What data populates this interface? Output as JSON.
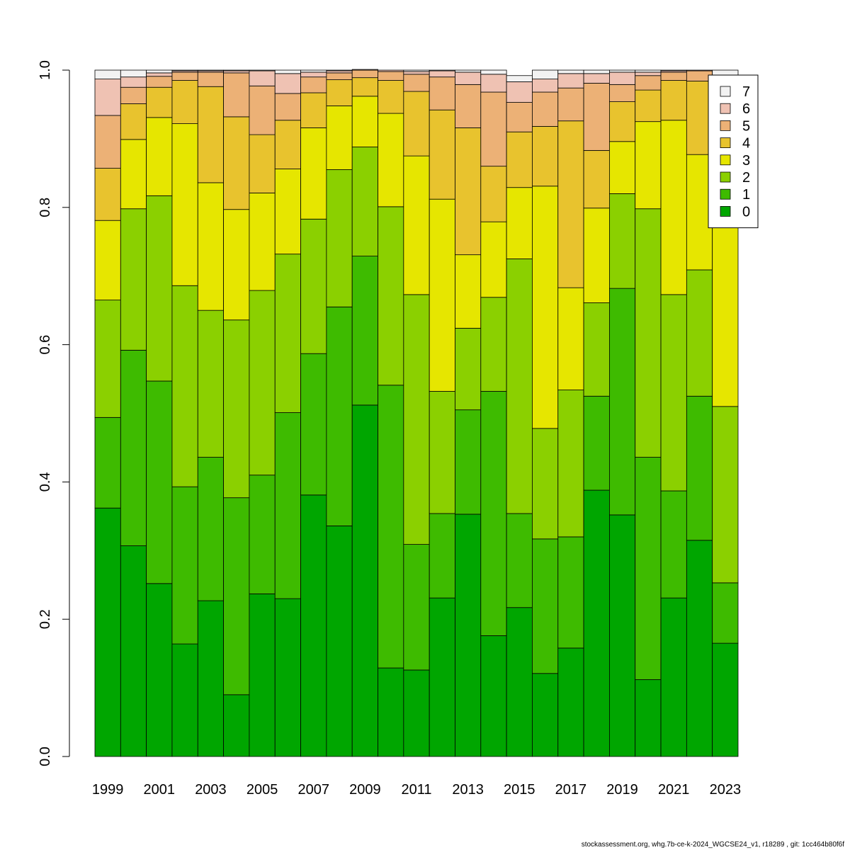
{
  "chart_data": {
    "type": "bar",
    "stacked": true,
    "categories": [
      "1999",
      "2000",
      "2001",
      "2002",
      "2003",
      "2004",
      "2005",
      "2006",
      "2007",
      "2008",
      "2009",
      "2010",
      "2011",
      "2012",
      "2013",
      "2014",
      "2015",
      "2016",
      "2017",
      "2018",
      "2019",
      "2020",
      "2021",
      "2022",
      "2023"
    ],
    "x_tick_labels": [
      "1999",
      "2001",
      "2003",
      "2005",
      "2007",
      "2009",
      "2011",
      "2013",
      "2015",
      "2017",
      "2019",
      "2021",
      "2023"
    ],
    "ylim": [
      0,
      1
    ],
    "y_ticks": [
      0,
      0.2,
      0.4,
      0.6,
      0.8,
      1
    ],
    "y_tick_labels": [
      "0.0",
      "0.2",
      "0.4",
      "0.6",
      "0.8",
      "1.0"
    ],
    "grid": false,
    "legend_position": "top-right",
    "series": [
      {
        "name": "0",
        "color": "#00A600",
        "values": [
          0.362,
          0.307,
          0.252,
          0.164,
          0.227,
          0.09,
          0.237,
          0.23,
          0.381,
          0.336,
          0.512,
          0.129,
          0.126,
          0.231,
          0.353,
          0.176,
          0.217,
          0.121,
          0.158,
          0.388,
          0.352,
          0.112,
          0.231,
          0.315,
          0.165
        ]
      },
      {
        "name": "1",
        "color": "#3EBB00",
        "values": [
          0.132,
          0.285,
          0.295,
          0.229,
          0.209,
          0.287,
          0.173,
          0.271,
          0.206,
          0.319,
          0.217,
          0.412,
          0.183,
          0.123,
          0.152,
          0.356,
          0.137,
          0.196,
          0.162,
          0.137,
          0.33,
          0.324,
          0.156,
          0.21,
          0.088
        ]
      },
      {
        "name": "2",
        "color": "#8BD000",
        "values": [
          0.171,
          0.206,
          0.27,
          0.293,
          0.214,
          0.259,
          0.269,
          0.231,
          0.196,
          0.2,
          0.159,
          0.26,
          0.364,
          0.178,
          0.119,
          0.137,
          0.371,
          0.161,
          0.214,
          0.136,
          0.138,
          0.362,
          0.286,
          0.184,
          0.257
        ]
      },
      {
        "name": "3",
        "color": "#E6E600",
        "values": [
          0.116,
          0.101,
          0.114,
          0.236,
          0.186,
          0.161,
          0.142,
          0.124,
          0.133,
          0.093,
          0.074,
          0.136,
          0.202,
          0.28,
          0.107,
          0.11,
          0.104,
          0.353,
          0.149,
          0.138,
          0.076,
          0.127,
          0.254,
          0.168,
          0.31
        ]
      },
      {
        "name": "4",
        "color": "#E8C32E",
        "values": [
          0.076,
          0.052,
          0.044,
          0.063,
          0.14,
          0.135,
          0.085,
          0.071,
          0.051,
          0.038,
          0.027,
          0.048,
          0.094,
          0.13,
          0.185,
          0.081,
          0.081,
          0.087,
          0.243,
          0.084,
          0.058,
          0.046,
          0.058,
          0.107,
          0.132
        ]
      },
      {
        "name": "5",
        "color": "#ECB176",
        "values": [
          0.077,
          0.024,
          0.016,
          0.012,
          0.021,
          0.064,
          0.071,
          0.039,
          0.023,
          0.01,
          0.011,
          0.013,
          0.025,
          0.048,
          0.063,
          0.108,
          0.043,
          0.05,
          0.048,
          0.098,
          0.025,
          0.021,
          0.012,
          0.015,
          0.033
        ]
      },
      {
        "name": "6",
        "color": "#EFC2B3",
        "values": [
          0.053,
          0.015,
          0.005,
          0.002,
          0.002,
          0.003,
          0.022,
          0.029,
          0.007,
          0.003,
          0.001,
          0.002,
          0.004,
          0.009,
          0.018,
          0.026,
          0.03,
          0.019,
          0.021,
          0.014,
          0.018,
          0.005,
          0.002,
          0.001,
          0.007
        ]
      },
      {
        "name": "7",
        "color": "#F2F2F2",
        "values": [
          0.013,
          0.01,
          0.004,
          0.001,
          0.001,
          0.001,
          0.001,
          0.005,
          0.003,
          0.001,
          0.0,
          0.0,
          0.002,
          0.001,
          0.003,
          0.006,
          0.009,
          0.013,
          0.005,
          0.005,
          0.003,
          0.003,
          0.001,
          0.0,
          0.008
        ]
      }
    ]
  },
  "footer_text": "stockassessment.org, whg.7b-ce-k-2024_WGCSE24_v1, r18289 , git: 1cc464b80f6f"
}
